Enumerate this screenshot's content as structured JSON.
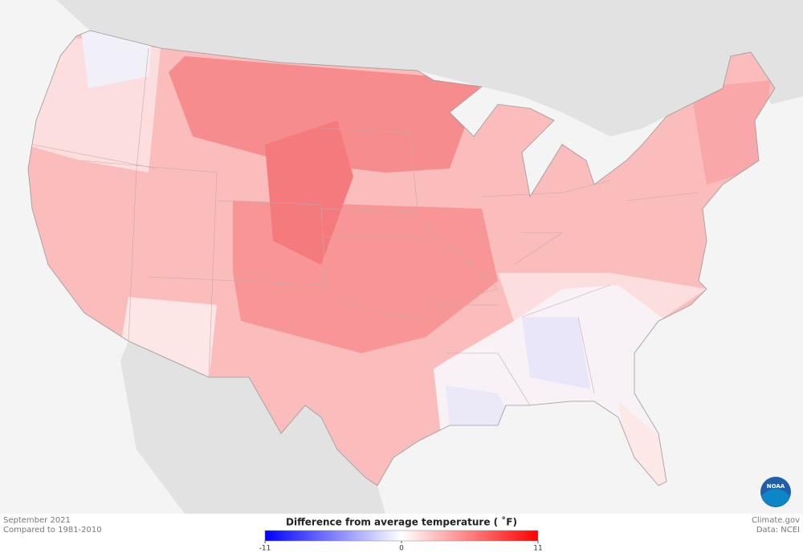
{
  "footer": {
    "left": [
      "September 2021",
      "Compared to 1981-2010"
    ],
    "right": [
      "Climate.gov",
      "Data: NCEI"
    ]
  },
  "legend": {
    "title": "Difference from average temperature ( ˚F)",
    "min": -11,
    "max": 11,
    "ticks": [
      -11,
      0,
      11
    ],
    "colors": [
      "#0000ff",
      "#ffffff",
      "#ff0000"
    ]
  },
  "logo": {
    "text": "NOAA"
  }
}
